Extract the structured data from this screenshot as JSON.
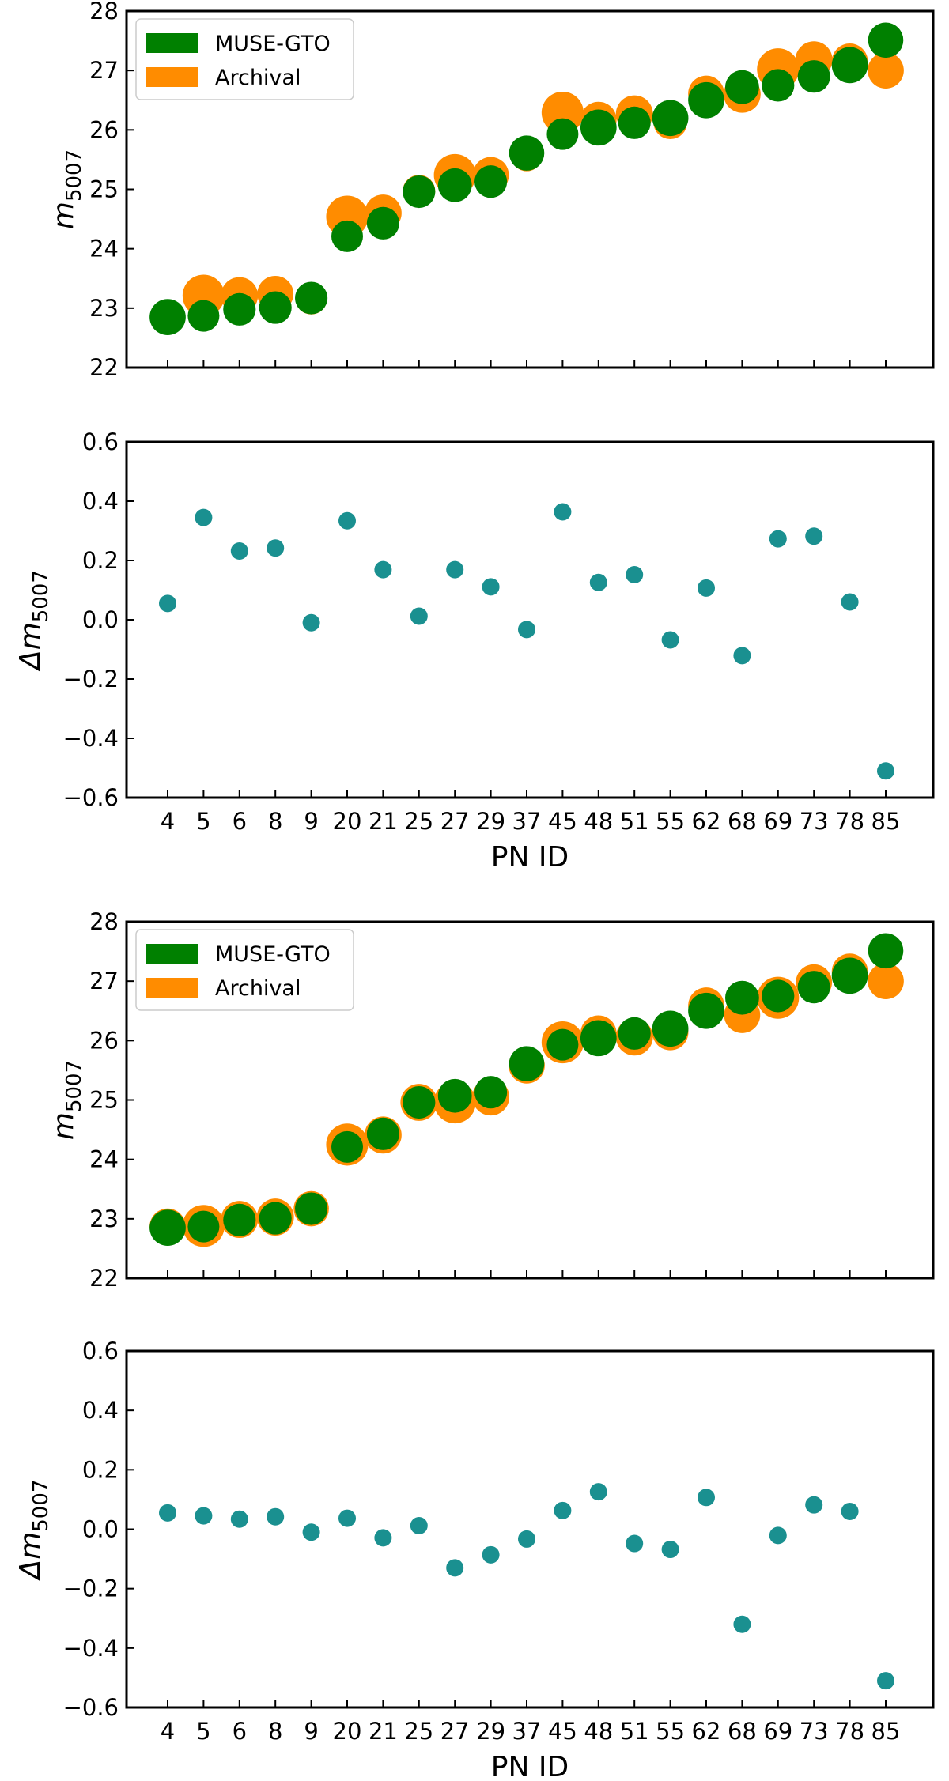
{
  "chart_data": [
    {
      "type": "scatter",
      "panel": "magnitudes-top",
      "ylabel": "m",
      "ylabel_sub": "5007",
      "xlabel": "",
      "ylim": [
        22,
        28
      ],
      "yticks": [
        "22",
        "23",
        "24",
        "25",
        "26",
        "27",
        "28"
      ],
      "categories": [
        "4",
        "5",
        "6",
        "8",
        "9",
        "20",
        "21",
        "25",
        "27",
        "29",
        "37",
        "45",
        "48",
        "51",
        "55",
        "62",
        "68",
        "69",
        "73",
        "78",
        "85"
      ],
      "legend": {
        "position": "top-left",
        "entries": [
          "MUSE-GTO",
          "Archival"
        ]
      },
      "series": [
        {
          "name": "Archival",
          "color": "#FF8C00",
          "values": [
            22.87,
            23.21,
            23.21,
            23.24,
            23.16,
            24.54,
            24.6,
            24.97,
            25.24,
            25.24,
            25.57,
            26.29,
            26.17,
            26.27,
            26.13,
            26.61,
            26.6,
            27.02,
            27.18,
            27.15,
            27.0
          ],
          "sizes": [
            0.7,
            0.93,
            0.82,
            0.8,
            0.7,
            0.93,
            0.82,
            0.72,
            0.93,
            0.8,
            0.7,
            0.93,
            0.8,
            0.82,
            0.75,
            0.8,
            0.82,
            0.93,
            0.82,
            0.8,
            0.8
          ]
        },
        {
          "name": "MUSE-GTO",
          "color": "#008000",
          "values": [
            22.85,
            22.87,
            22.98,
            23.01,
            23.17,
            24.21,
            24.43,
            24.96,
            25.07,
            25.13,
            25.61,
            25.93,
            26.04,
            26.12,
            26.2,
            26.5,
            26.72,
            26.75,
            26.9,
            27.09,
            27.51
          ],
          "sizes": [
            0.8,
            0.7,
            0.72,
            0.72,
            0.72,
            0.7,
            0.72,
            0.72,
            0.75,
            0.72,
            0.78,
            0.7,
            0.8,
            0.72,
            0.8,
            0.8,
            0.75,
            0.72,
            0.72,
            0.8,
            0.78
          ]
        }
      ]
    },
    {
      "type": "scatter",
      "panel": "differences-top",
      "ylabel": "Δm",
      "ylabel_sub": "5007",
      "xlabel": "PN ID",
      "ylim": [
        -0.6,
        0.6
      ],
      "yticks": [
        "−0.6",
        "−0.4",
        "−0.2",
        "0.0",
        "0.2",
        "0.4",
        "0.6"
      ],
      "categories": [
        "4",
        "5",
        "6",
        "8",
        "9",
        "20",
        "21",
        "25",
        "27",
        "29",
        "37",
        "45",
        "48",
        "51",
        "55",
        "62",
        "68",
        "69",
        "73",
        "78",
        "85"
      ],
      "series": [
        {
          "name": "Δm",
          "color": "#1A9090",
          "values": [
            0.055,
            0.345,
            0.232,
            0.242,
            -0.01,
            0.334,
            0.169,
            0.012,
            0.169,
            0.111,
            -0.033,
            0.364,
            0.126,
            0.152,
            -0.068,
            0.107,
            -0.121,
            0.273,
            0.282,
            0.06,
            -0.51
          ]
        }
      ]
    },
    {
      "type": "scatter",
      "panel": "magnitudes-bottom",
      "ylabel": "m",
      "ylabel_sub": "5007",
      "xlabel": "",
      "ylim": [
        22,
        28
      ],
      "yticks": [
        "22",
        "23",
        "24",
        "25",
        "26",
        "27",
        "28"
      ],
      "categories": [
        "4",
        "5",
        "6",
        "8",
        "9",
        "20",
        "21",
        "25",
        "27",
        "29",
        "37",
        "45",
        "48",
        "51",
        "55",
        "62",
        "68",
        "69",
        "73",
        "78",
        "85"
      ],
      "legend": {
        "position": "top-left",
        "entries": [
          "MUSE-GTO",
          "Archival"
        ]
      },
      "series": [
        {
          "name": "Archival",
          "color": "#FF8C00",
          "values": [
            22.87,
            22.88,
            22.99,
            23.03,
            23.17,
            24.25,
            24.41,
            24.96,
            24.96,
            25.05,
            25.58,
            25.97,
            26.12,
            26.06,
            26.14,
            26.59,
            26.43,
            26.72,
            26.98,
            27.16,
            27.0
          ],
          "sizes": [
            0.8,
            0.93,
            0.82,
            0.82,
            0.78,
            0.93,
            0.82,
            0.82,
            0.93,
            0.82,
            0.8,
            0.93,
            0.8,
            0.82,
            0.8,
            0.8,
            0.8,
            0.93,
            0.8,
            0.8,
            0.8
          ]
        },
        {
          "name": "MUSE-GTO",
          "color": "#008000",
          "values": [
            22.85,
            22.87,
            22.98,
            23.01,
            23.17,
            24.21,
            24.43,
            24.96,
            25.07,
            25.13,
            25.61,
            25.93,
            26.04,
            26.12,
            26.2,
            26.5,
            26.72,
            26.75,
            26.9,
            27.09,
            27.51
          ],
          "sizes": [
            0.8,
            0.7,
            0.72,
            0.72,
            0.72,
            0.7,
            0.72,
            0.72,
            0.75,
            0.72,
            0.78,
            0.7,
            0.8,
            0.72,
            0.8,
            0.8,
            0.75,
            0.72,
            0.72,
            0.8,
            0.78
          ]
        }
      ]
    },
    {
      "type": "scatter",
      "panel": "differences-bottom",
      "ylabel": "Δm",
      "ylabel_sub": "5007",
      "xlabel": "PN ID",
      "ylim": [
        -0.6,
        0.6
      ],
      "yticks": [
        "−0.6",
        "−0.4",
        "−0.2",
        "0.0",
        "0.2",
        "0.4",
        "0.6"
      ],
      "categories": [
        "4",
        "5",
        "6",
        "8",
        "9",
        "20",
        "21",
        "25",
        "27",
        "29",
        "37",
        "45",
        "48",
        "51",
        "55",
        "62",
        "68",
        "69",
        "73",
        "78",
        "85"
      ],
      "series": [
        {
          "name": "Δm",
          "color": "#1A9090",
          "values": [
            0.055,
            0.045,
            0.034,
            0.042,
            -0.01,
            0.037,
            -0.029,
            0.012,
            -0.13,
            -0.086,
            -0.033,
            0.063,
            0.126,
            -0.048,
            -0.068,
            0.107,
            -0.32,
            -0.021,
            0.082,
            0.06,
            -0.51
          ]
        }
      ]
    }
  ]
}
